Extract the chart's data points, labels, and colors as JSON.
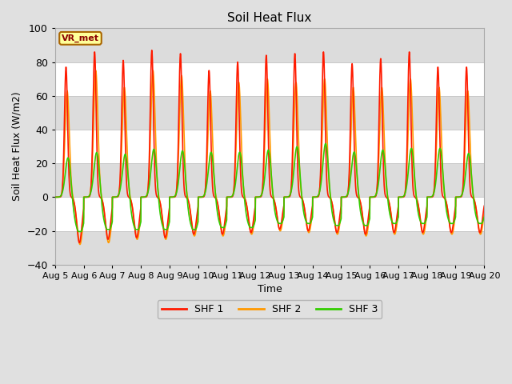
{
  "title": "Soil Heat Flux",
  "ylabel": "Soil Heat Flux (W/m2)",
  "xlabel": "Time",
  "ylim": [
    -40,
    100
  ],
  "yticks": [
    -40,
    -20,
    0,
    20,
    40,
    60,
    80,
    100
  ],
  "xtick_labels": [
    "Aug 5",
    "Aug 6",
    "Aug 7",
    "Aug 8",
    "Aug 9",
    "Aug 10",
    "Aug 11",
    "Aug 12",
    "Aug 13",
    "Aug 14",
    "Aug 15",
    "Aug 16",
    "Aug 17",
    "Aug 18",
    "Aug 19",
    "Aug 20"
  ],
  "fig_bg_color": "#e0e0e0",
  "plot_bg_color": "#ffffff",
  "band_color": "#dcdcdc",
  "grid_color": "#c8c8c8",
  "line_colors": {
    "SHF 1": "#ff1a00",
    "SHF 2": "#ff9900",
    "SHF 3": "#33cc00"
  },
  "legend_label": "VR_met",
  "n_days": 15,
  "pts_per_day": 288,
  "shf1_peaks": [
    77,
    86,
    81,
    87,
    85,
    75,
    80,
    84,
    85,
    86,
    79,
    82,
    86,
    77,
    77
  ],
  "shf1_troughs": [
    -27,
    -25,
    -24,
    -24,
    -22,
    -22,
    -21,
    -19,
    -20,
    -21,
    -22,
    -21,
    -21,
    -21,
    -21
  ],
  "shf2_peaks": [
    63,
    75,
    65,
    75,
    72,
    63,
    68,
    70,
    68,
    70,
    65,
    65,
    70,
    65,
    63
  ],
  "shf2_troughs": [
    -28,
    -27,
    -25,
    -25,
    -23,
    -23,
    -22,
    -20,
    -21,
    -22,
    -23,
    -22,
    -22,
    -22,
    -22
  ],
  "shf3_peaks": [
    26,
    29,
    28,
    31,
    30,
    29,
    29,
    30,
    32,
    34,
    29,
    30,
    31,
    31,
    28
  ],
  "shf3_troughs": [
    -17,
    -16,
    -16,
    -16,
    -16,
    -15,
    -15,
    -13,
    -13,
    -14,
    -14,
    -13,
    -13,
    -13,
    -13
  ]
}
